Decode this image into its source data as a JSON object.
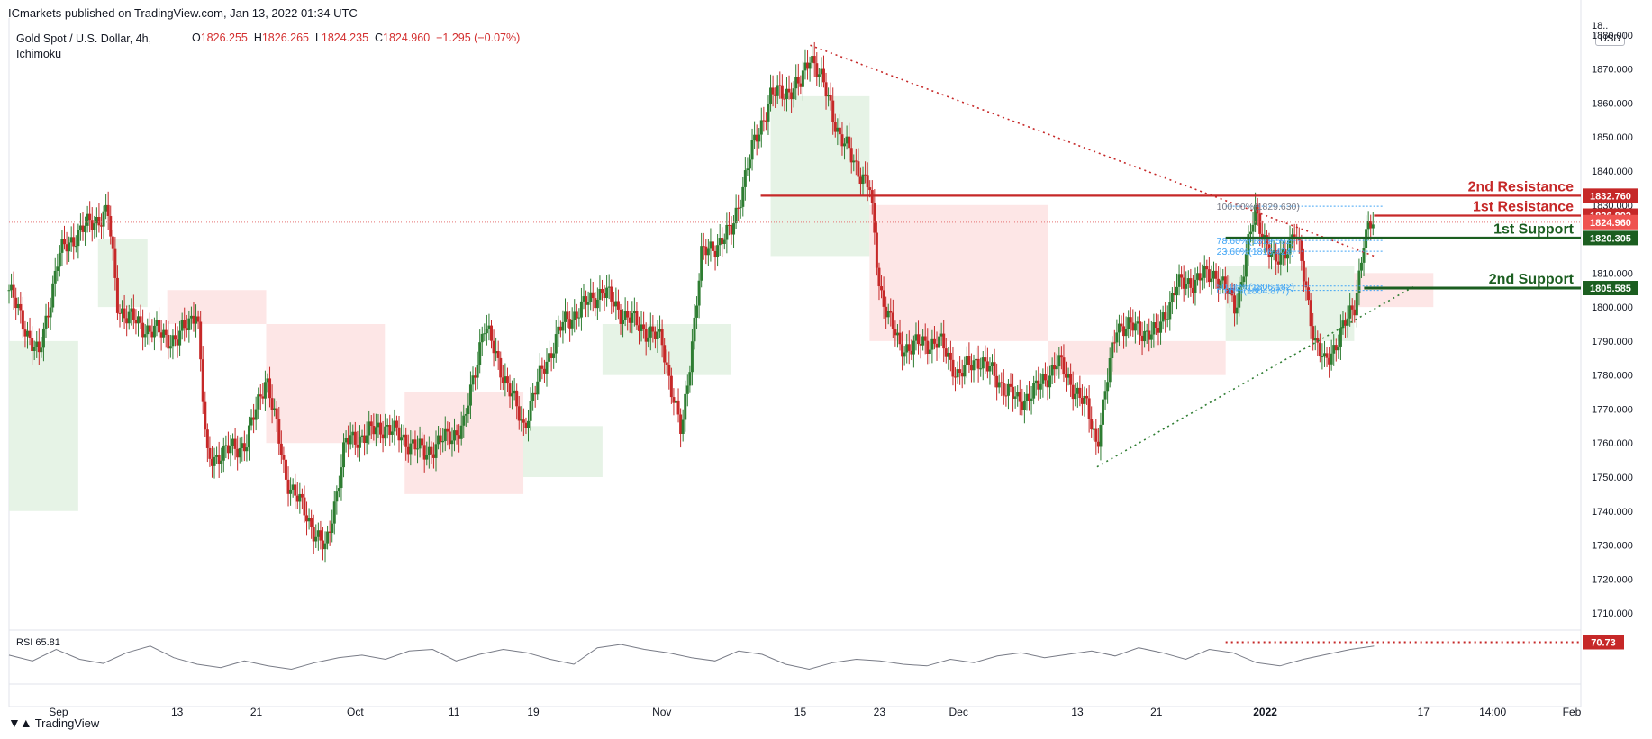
{
  "header": {
    "published": "ICmarkets published on TradingView.com, Jan 13, 2022 01:34 UTC"
  },
  "instrument": {
    "title": "Gold Spot / U.S. Dollar, 4h,",
    "indicator": "Ichimoku",
    "o_label": "O",
    "o_value": "1826.255",
    "h_label": "H",
    "h_value": "1826.265",
    "l_label": "L",
    "l_value": "1824.235",
    "c_label": "C",
    "c_value": "1824.960",
    "change": "−1.295 (−0.07%)"
  },
  "currency": "USD",
  "rsi": {
    "label": "RSI",
    "value": "65.81",
    "level_badge": "70.73"
  },
  "footer": {
    "brand": "TradingView"
  },
  "colors": {
    "up": "#2e7d32",
    "down": "#c62828",
    "resistance": "#c62828",
    "support": "#1b5e20",
    "cloud_green": "#e3f2e3",
    "cloud_red": "#fde3e3"
  },
  "chart_data": {
    "type": "candlestick",
    "interval": "4h",
    "ylim": [
      1705,
      1885
    ],
    "y_ticks": [
      1710,
      1720,
      1730,
      1740,
      1750,
      1760,
      1770,
      1780,
      1790,
      1800,
      1810,
      1820,
      1830,
      1840,
      1850,
      1860,
      1870,
      1880
    ],
    "y_top_partial_label": "18..",
    "x_labels": [
      "Sep",
      "13",
      "21",
      "Oct",
      "11",
      "19",
      "Nov",
      "15",
      "23",
      "Dec",
      "13",
      "21",
      "2022",
      "17",
      "14:00",
      "Feb"
    ],
    "price_path": [
      {
        "date": "2021-08-27",
        "price": 1805
      },
      {
        "date": "2021-08-30",
        "price": 1785
      },
      {
        "date": "2021-09-01",
        "price": 1815
      },
      {
        "date": "2021-09-03",
        "price": 1822
      },
      {
        "date": "2021-09-06",
        "price": 1828
      },
      {
        "date": "2021-09-07",
        "price": 1800
      },
      {
        "date": "2021-09-09",
        "price": 1795
      },
      {
        "date": "2021-09-13",
        "price": 1790
      },
      {
        "date": "2021-09-15",
        "price": 1800
      },
      {
        "date": "2021-09-16",
        "price": 1755
      },
      {
        "date": "2021-09-20",
        "price": 1760
      },
      {
        "date": "2021-09-22",
        "price": 1780
      },
      {
        "date": "2021-09-24",
        "price": 1750
      },
      {
        "date": "2021-09-28",
        "price": 1728
      },
      {
        "date": "2021-09-30",
        "price": 1760
      },
      {
        "date": "2021-10-04",
        "price": 1765
      },
      {
        "date": "2021-10-08",
        "price": 1757
      },
      {
        "date": "2021-10-12",
        "price": 1765
      },
      {
        "date": "2021-10-14",
        "price": 1795
      },
      {
        "date": "2021-10-18",
        "price": 1765
      },
      {
        "date": "2021-10-20",
        "price": 1782
      },
      {
        "date": "2021-10-22",
        "price": 1795
      },
      {
        "date": "2021-10-26",
        "price": 1805
      },
      {
        "date": "2021-10-28",
        "price": 1798
      },
      {
        "date": "2021-11-01",
        "price": 1790
      },
      {
        "date": "2021-11-03",
        "price": 1762
      },
      {
        "date": "2021-11-05",
        "price": 1815
      },
      {
        "date": "2021-11-08",
        "price": 1822
      },
      {
        "date": "2021-11-10",
        "price": 1845
      },
      {
        "date": "2021-11-12",
        "price": 1862
      },
      {
        "date": "2021-11-15",
        "price": 1865
      },
      {
        "date": "2021-11-16",
        "price": 1875
      },
      {
        "date": "2021-11-18",
        "price": 1860
      },
      {
        "date": "2021-11-19",
        "price": 1850
      },
      {
        "date": "2021-11-22",
        "price": 1835
      },
      {
        "date": "2021-11-23",
        "price": 1806
      },
      {
        "date": "2021-11-25",
        "price": 1788
      },
      {
        "date": "2021-11-29",
        "price": 1790
      },
      {
        "date": "2021-12-01",
        "price": 1780
      },
      {
        "date": "2021-12-03",
        "price": 1785
      },
      {
        "date": "2021-12-07",
        "price": 1772
      },
      {
        "date": "2021-12-09",
        "price": 1776
      },
      {
        "date": "2021-12-11",
        "price": 1784
      },
      {
        "date": "2021-12-14",
        "price": 1770
      },
      {
        "date": "2021-12-15",
        "price": 1760
      },
      {
        "date": "2021-12-17",
        "price": 1795
      },
      {
        "date": "2021-12-21",
        "price": 1792
      },
      {
        "date": "2021-12-23",
        "price": 1806
      },
      {
        "date": "2021-12-27",
        "price": 1810
      },
      {
        "date": "2021-12-29",
        "price": 1800
      },
      {
        "date": "2021-12-31",
        "price": 1828
      },
      {
        "date": "2022-01-02",
        "price": 1812
      },
      {
        "date": "2022-01-04",
        "price": 1822
      },
      {
        "date": "2022-01-05",
        "price": 1808
      },
      {
        "date": "2022-01-06",
        "price": 1790
      },
      {
        "date": "2022-01-07",
        "price": 1783
      },
      {
        "date": "2022-01-10",
        "price": 1800
      },
      {
        "date": "2022-01-11",
        "price": 1820
      },
      {
        "date": "2022-01-12",
        "price": 1825
      }
    ],
    "levels": [
      {
        "name": "2nd Resistance",
        "price": 1832.76,
        "badge": "1832.760",
        "kind": "resistance"
      },
      {
        "name": "1st Resistance",
        "price": 1826.892,
        "badge": "1826.892",
        "kind": "resistance"
      },
      {
        "name": "1st Support",
        "price": 1820.305,
        "badge": "1820.305",
        "kind": "support"
      },
      {
        "name": "2nd Support",
        "price": 1805.585,
        "badge": "1805.585",
        "kind": "support"
      }
    ],
    "last_price": {
      "price": 1824.96,
      "badge": "1824.960"
    },
    "fib_labels": [
      {
        "text": "100.00%(1829.630)",
        "price": 1829.63
      },
      {
        "text": "78.60%(1819.592)",
        "price": 1819.59
      },
      {
        "text": "23.60%(1816.424)",
        "price": 1816.42
      },
      {
        "text": "50.00%(1806.182)",
        "price": 1806.18
      },
      {
        "text": "0.00%(1804.877)",
        "price": 1804.88
      }
    ],
    "trendlines": [
      {
        "kind": "resistance-dotted",
        "from": {
          "date": "2021-11-16",
          "price": 1877
        },
        "to": {
          "date": "2022-01-12",
          "price": 1815
        }
      },
      {
        "kind": "support-dotted",
        "from": {
          "date": "2021-12-15",
          "price": 1753
        },
        "to": {
          "date": "2022-01-16",
          "price": 1806
        }
      }
    ],
    "rsi_series": [
      55,
      48,
      62,
      50,
      45,
      58,
      66,
      52,
      44,
      40,
      48,
      42,
      38,
      46,
      52,
      55,
      50,
      60,
      62,
      48,
      56,
      62,
      58,
      50,
      44,
      64,
      68,
      62,
      58,
      52,
      48,
      60,
      56,
      44,
      38,
      46,
      50,
      48,
      44,
      42,
      50,
      46,
      54,
      58,
      52,
      56,
      60,
      54,
      64,
      58,
      50,
      62,
      58,
      46,
      42,
      50,
      56,
      62,
      66
    ]
  }
}
